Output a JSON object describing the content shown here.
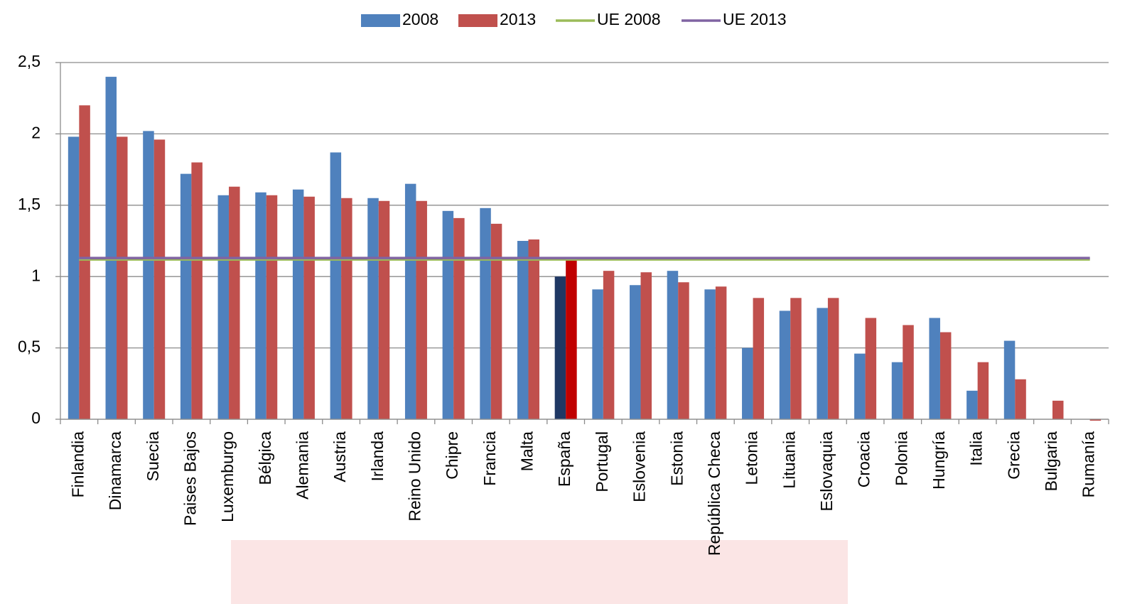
{
  "chart_data": {
    "type": "bar",
    "categories": [
      "Finlandia",
      "Dinamarca",
      "Suecia",
      "Paises Bajos",
      "Luxemburgo",
      "Bélgica",
      "Alemania",
      "Austria",
      "Irlanda",
      "Reino Unido",
      "Chipre",
      "Francia",
      "Malta",
      "España",
      "Portugal",
      "Eslovenia",
      "Estonia",
      "República Checa",
      "Letonia",
      "Lituania",
      "Eslovaquia",
      "Croacia",
      "Polonia",
      "Hungría",
      "Italia",
      "Grecia",
      "Bulgaria",
      "Rumanía"
    ],
    "series": [
      {
        "name": "2008",
        "color": "#4f81bd",
        "values": [
          1.98,
          2.4,
          2.02,
          1.72,
          1.57,
          1.59,
          1.61,
          1.87,
          1.55,
          1.65,
          1.46,
          1.48,
          1.25,
          1.0,
          0.91,
          0.94,
          1.04,
          0.91,
          0.5,
          0.76,
          0.78,
          0.46,
          0.4,
          0.71,
          0.2,
          0.55,
          null,
          null
        ]
      },
      {
        "name": "2013",
        "color": "#c0504d",
        "values": [
          2.2,
          1.98,
          1.96,
          1.8,
          1.63,
          1.57,
          1.56,
          1.55,
          1.53,
          1.53,
          1.41,
          1.37,
          1.26,
          1.12,
          1.04,
          1.03,
          0.96,
          0.93,
          0.85,
          0.85,
          0.85,
          0.71,
          0.66,
          0.61,
          0.4,
          0.28,
          0.13,
          -0.01
        ]
      }
    ],
    "reference_lines": [
      {
        "name": "UE 2008",
        "color": "#9bbb59",
        "value": 1.12
      },
      {
        "name": "UE 2013",
        "color": "#8064a2",
        "value": 1.13
      }
    ],
    "highlight": {
      "category": "España",
      "colors": [
        "#1f3864",
        "#c00000"
      ]
    },
    "ylim": [
      0,
      2.5
    ],
    "yticks": [
      0,
      {
        "value": 0.5,
        "label": "0,5"
      },
      1,
      {
        "value": 1.5,
        "label": "1,5"
      },
      2,
      {
        "value": 2.5,
        "label": "2,5"
      }
    ],
    "grid": true
  }
}
